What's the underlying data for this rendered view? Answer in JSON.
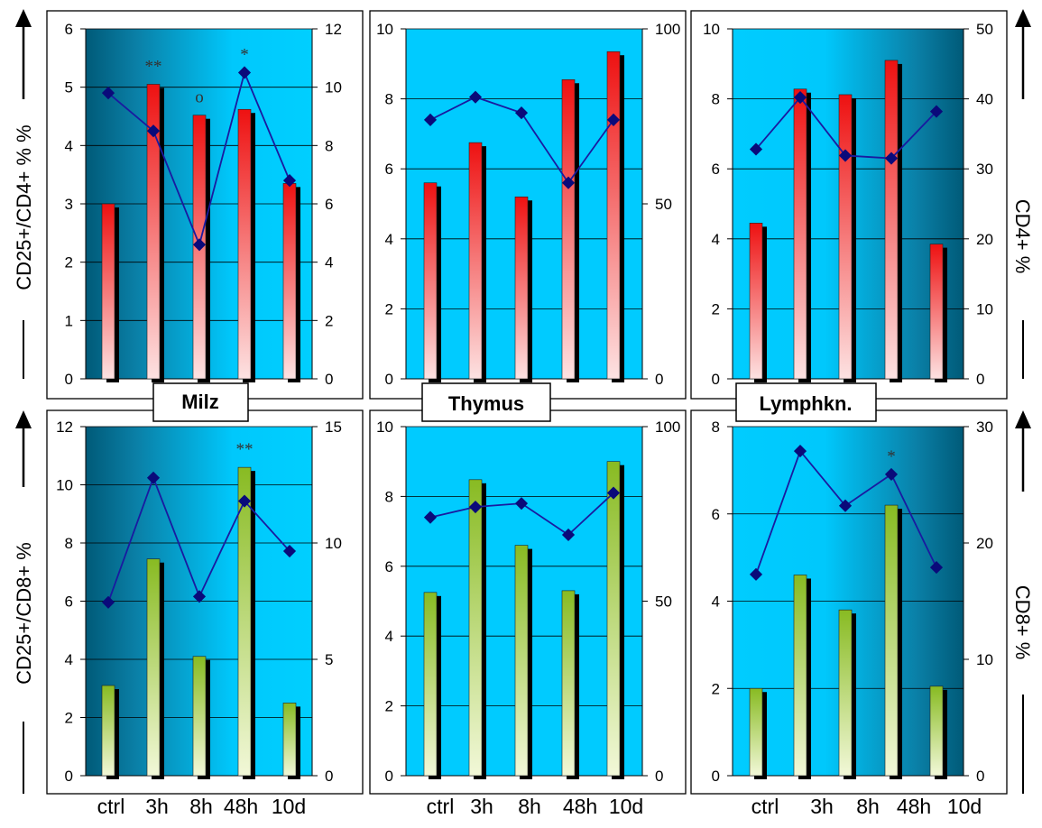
{
  "left_labels": {
    "top": "CD25+/CD4+ % %",
    "bottom": "CD25+/CD8+ %"
  },
  "right_labels": {
    "top": "CD4+ %",
    "bottom": "CD8+ %"
  },
  "organ_labels": [
    "Milz",
    "Thymus",
    "Lymphkn."
  ],
  "x_categories": [
    [
      "ctrl",
      "3h",
      "8h",
      "48h",
      "10d"
    ],
    [
      "ctrl",
      "3h",
      "8h",
      "48h",
      "10d"
    ],
    [
      "ctrl",
      "3h",
      "8h",
      "48h",
      "10d"
    ]
  ],
  "colors": {
    "cd4_bar_top": "#ee1111",
    "cd4_bar_bottom": "#fde2e2",
    "cd8_bar_top": "#88bb22",
    "cd8_bar_bottom": "#f2f8d8",
    "line": "#1a1aa0",
    "marker": "#0a0a7a",
    "plot_light": "#00ccff",
    "plot_dark": "#005a78"
  },
  "chart_data": [
    {
      "type": "bar",
      "panel": "Milz CD4",
      "categories": [
        "ctrl",
        "3h",
        "8h",
        "48h",
        "10d"
      ],
      "gradient": "dark-left",
      "series": [
        {
          "type": "bar",
          "axis": "left",
          "values": [
            3.0,
            5.05,
            4.52,
            4.62,
            3.35
          ]
        },
        {
          "type": "line",
          "axis": "right",
          "values": [
            9.8,
            8.5,
            4.6,
            10.5,
            6.8
          ]
        }
      ],
      "ylim_left": [
        0,
        6
      ],
      "yticks_left": [
        0,
        1,
        2,
        3,
        4,
        5,
        6
      ],
      "ylim_right": [
        0,
        12
      ],
      "yticks_right": [
        0,
        2,
        4,
        6,
        8,
        10,
        12
      ],
      "annotations": [
        {
          "category": "3h",
          "text": "**"
        },
        {
          "category": "8h",
          "text": "o"
        },
        {
          "category": "48h",
          "text": "*"
        }
      ]
    },
    {
      "type": "bar",
      "panel": "Thymus CD4",
      "categories": [
        "ctrl",
        "3h",
        "8h",
        "48h",
        "10d"
      ],
      "gradient": "plain",
      "series": [
        {
          "type": "bar",
          "axis": "left",
          "values": [
            5.6,
            6.75,
            5.2,
            8.55,
            9.35
          ]
        },
        {
          "type": "line",
          "axis": "right",
          "values": [
            74,
            80.5,
            76,
            56,
            74
          ]
        }
      ],
      "ylim_left": [
        0,
        10
      ],
      "yticks_left": [
        0,
        2,
        4,
        6,
        8,
        10
      ],
      "ylim_right": [
        0,
        100
      ],
      "yticks_right": [
        0,
        50,
        100
      ],
      "annotations": []
    },
    {
      "type": "bar",
      "panel": "Lymphkn. CD4",
      "categories": [
        "ctrl",
        "3h",
        "8h",
        "48h",
        "10d"
      ],
      "gradient": "dark-right",
      "series": [
        {
          "type": "bar",
          "axis": "left",
          "values": [
            4.45,
            8.28,
            8.12,
            9.1,
            3.85
          ]
        },
        {
          "type": "line",
          "axis": "right",
          "values": [
            32.8,
            40.2,
            31.9,
            31.5,
            38.2
          ]
        }
      ],
      "ylim_left": [
        0,
        10
      ],
      "yticks_left": [
        0,
        2,
        4,
        6,
        8,
        10
      ],
      "ylim_right": [
        0,
        50
      ],
      "yticks_right": [
        0,
        10,
        20,
        30,
        40,
        50
      ],
      "annotations": []
    },
    {
      "type": "bar",
      "panel": "Milz CD8",
      "categories": [
        "ctrl",
        "3h",
        "8h",
        "48h",
        "10d"
      ],
      "gradient": "dark-left",
      "series": [
        {
          "type": "bar",
          "axis": "left",
          "values": [
            3.1,
            7.45,
            4.1,
            10.6,
            2.5
          ]
        },
        {
          "type": "line",
          "axis": "right",
          "values": [
            7.45,
            12.8,
            7.7,
            11.8,
            9.65
          ]
        }
      ],
      "ylim_left": [
        0,
        12
      ],
      "yticks_left": [
        0,
        2,
        4,
        6,
        8,
        10,
        12
      ],
      "ylim_right": [
        0,
        15
      ],
      "yticks_right": [
        0,
        5,
        10,
        15
      ],
      "annotations": [
        {
          "category": "48h",
          "text": "**"
        }
      ]
    },
    {
      "type": "bar",
      "panel": "Thymus CD8",
      "categories": [
        "ctrl",
        "3h",
        "8h",
        "48h",
        "10d"
      ],
      "gradient": "plain",
      "series": [
        {
          "type": "bar",
          "axis": "left",
          "values": [
            5.25,
            8.48,
            6.6,
            5.3,
            9.0
          ]
        },
        {
          "type": "line",
          "axis": "right",
          "values": [
            74,
            77,
            78,
            69,
            81
          ]
        }
      ],
      "ylim_left": [
        0,
        10
      ],
      "yticks_left": [
        0,
        2,
        4,
        6,
        8,
        10
      ],
      "ylim_right": [
        0,
        100
      ],
      "yticks_right": [
        0,
        50,
        100
      ],
      "annotations": []
    },
    {
      "type": "bar",
      "panel": "Lymphkn. CD8",
      "categories": [
        "ctrl",
        "3h",
        "8h",
        "48h",
        "10d"
      ],
      "gradient": "dark-right",
      "series": [
        {
          "type": "bar",
          "axis": "left",
          "values": [
            2.0,
            4.6,
            3.8,
            6.2,
            2.05
          ]
        },
        {
          "type": "line",
          "axis": "right",
          "values": [
            17.3,
            27.9,
            23.2,
            25.9,
            17.9
          ]
        }
      ],
      "ylim_left": [
        0,
        8
      ],
      "yticks_left": [
        0,
        2,
        4,
        6,
        8
      ],
      "ylim_right": [
        0,
        30
      ],
      "yticks_right": [
        0,
        10,
        20,
        30
      ],
      "annotations": [
        {
          "category": "48h",
          "text": "*"
        }
      ]
    }
  ]
}
